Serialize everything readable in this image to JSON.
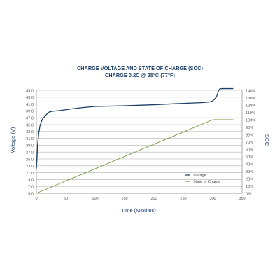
{
  "chart_data": {
    "type": "line",
    "title": "CHARGE VOLTAGE AND STATE OF CHARGE (SOC)",
    "subtitle": "CHARGE 0.2C @ 25°C (77°F)",
    "xlabel": "Time (Minutes)",
    "ylabel_left": "Voltage (V)",
    "ylabel_right": "SOC",
    "x_ticks": [
      "0",
      "50",
      "100",
      "150",
      "200",
      "250",
      "300",
      "350"
    ],
    "y_left_ticks": [
      "15.0",
      "17.0",
      "19.0",
      "21.0",
      "23.0",
      "25.0",
      "27.0",
      "29.0",
      "31.0",
      "33.0",
      "35.0",
      "37.0",
      "39.0",
      "41.0",
      "43.0",
      "45.0"
    ],
    "y_right_ticks": [
      "0%",
      "10%",
      "20%",
      "30%",
      "40%",
      "50%",
      "60%",
      "70%",
      "80%",
      "90%",
      "100%",
      "110%",
      "120%",
      "130%",
      "140%"
    ],
    "xlim": [
      0,
      350
    ],
    "ylim_left": [
      15,
      45
    ],
    "ylim_right": [
      0,
      140
    ],
    "grid": "horizontal",
    "legend_position": "right",
    "colors": {
      "voltage": "#1c3f66",
      "soc": "#6f9b3a",
      "text": "#1c3f66",
      "grid": "#b0b0b0"
    },
    "series": [
      {
        "name": "Voltage",
        "axis": "left",
        "x": [
          0,
          1,
          2,
          4,
          6,
          8,
          10,
          14,
          18,
          22,
          28,
          40,
          60,
          80,
          100,
          150,
          200,
          250,
          280,
          295,
          300,
          303,
          306,
          308,
          310,
          312,
          316,
          320,
          335
        ],
        "y": [
          22.2,
          25.0,
          29.0,
          32.5,
          34.5,
          35.7,
          36.5,
          37.4,
          38.1,
          38.7,
          38.9,
          39.1,
          39.6,
          40.0,
          40.3,
          40.5,
          40.8,
          41.2,
          41.4,
          41.6,
          41.9,
          42.4,
          43.0,
          43.8,
          44.9,
          45.4,
          45.5,
          45.5,
          45.5
        ]
      },
      {
        "name": "State of Charge",
        "axis": "right",
        "x": [
          0,
          300,
          320,
          335
        ],
        "y": [
          0,
          100,
          100,
          100
        ]
      }
    ]
  }
}
